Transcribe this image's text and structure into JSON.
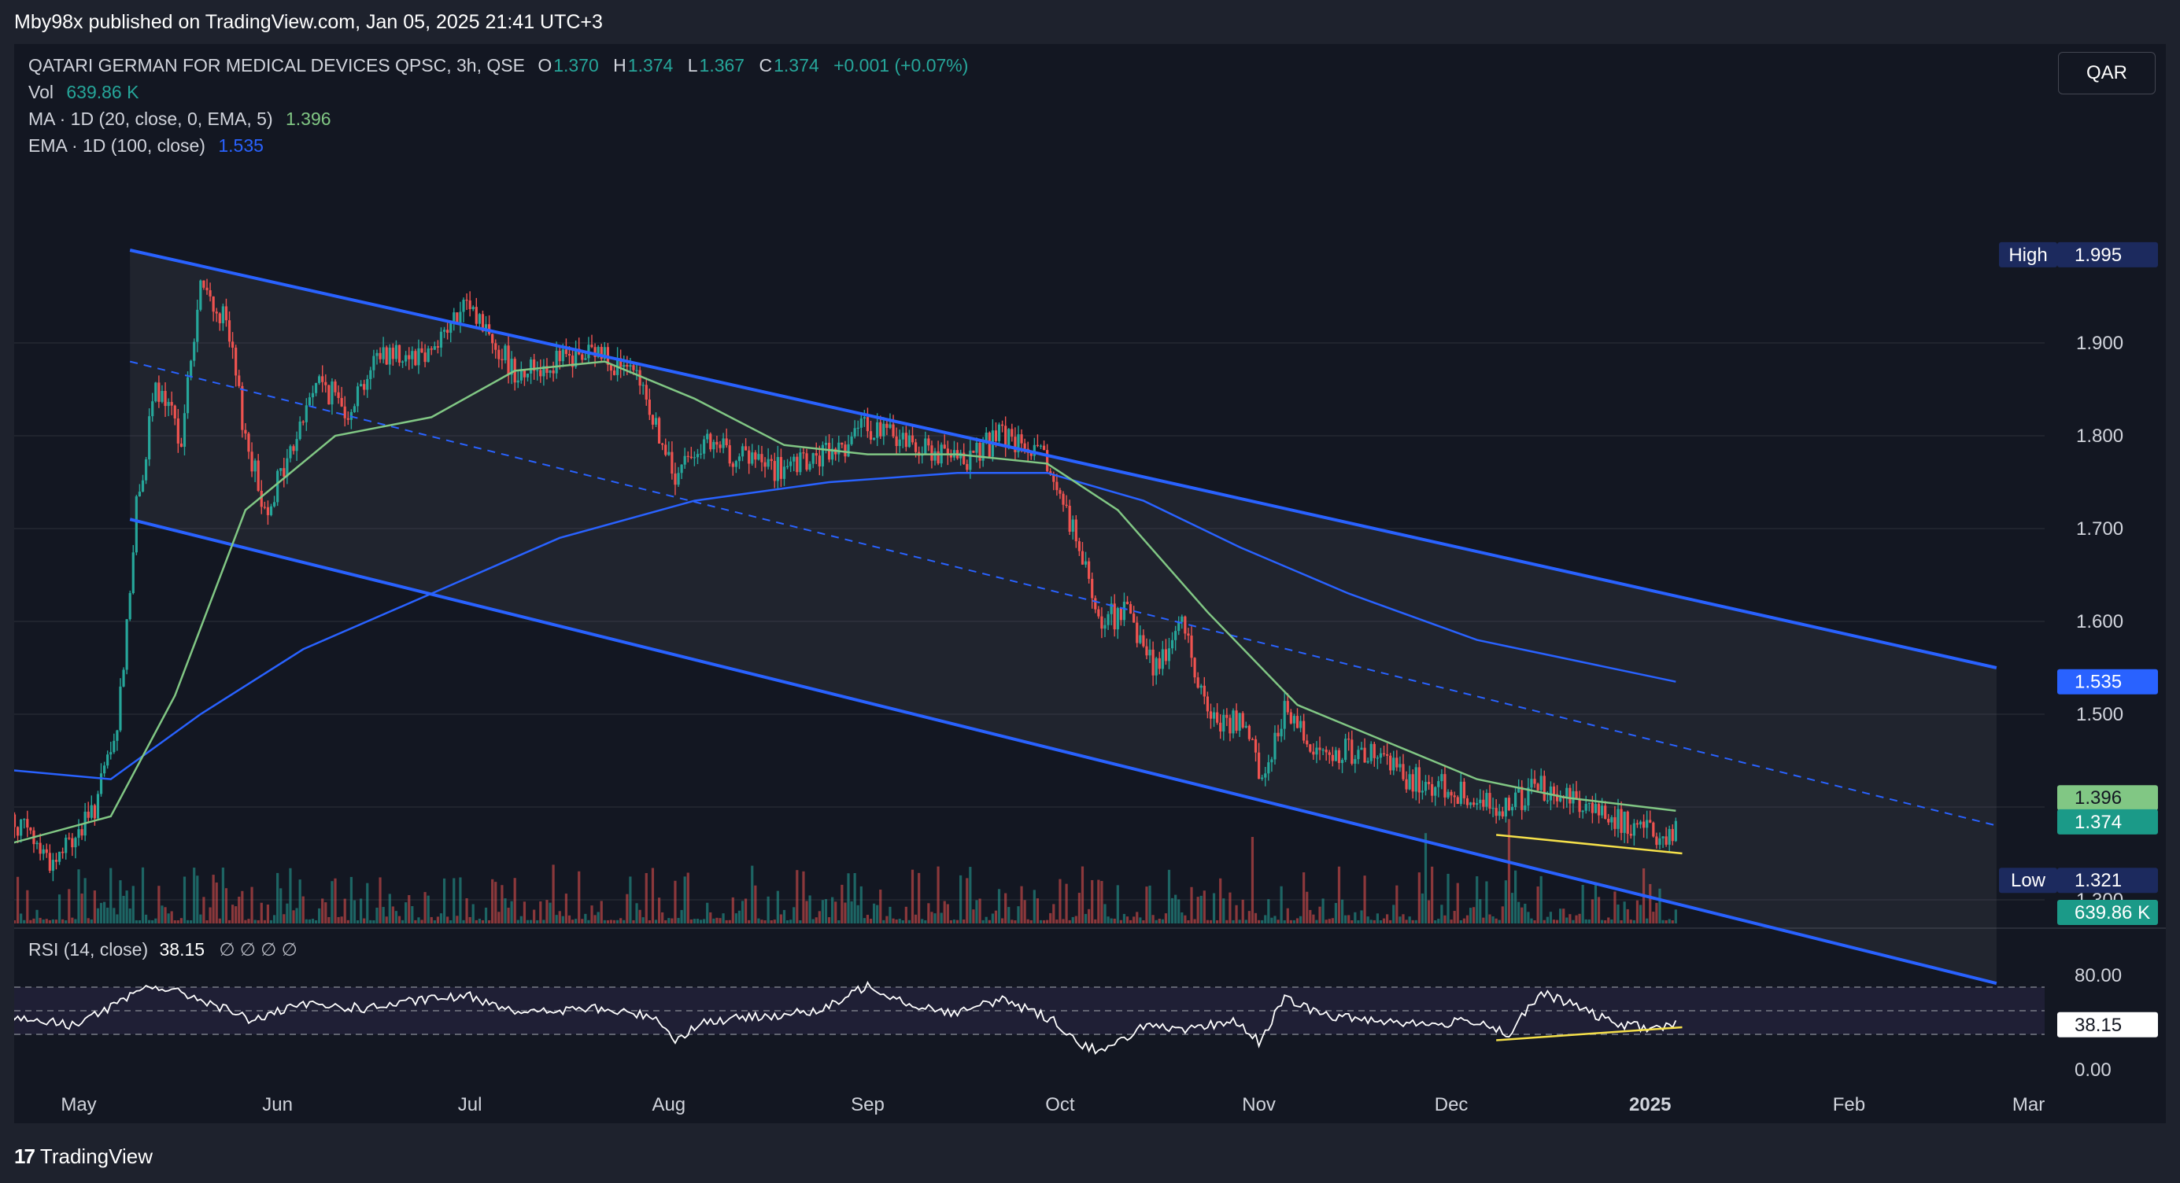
{
  "header": {
    "publisher_line": "Mby98x published on TradingView.com, Jan 05, 2025 21:41 UTC+3"
  },
  "legend": {
    "symbol": "QATARI GERMAN FOR MEDICAL DEVICES QPSC, 3h, QSE",
    "open_label": "O",
    "open": "1.370",
    "high_label": "H",
    "high": "1.374",
    "low_label": "L",
    "low": "1.367",
    "close_label": "C",
    "close": "1.374",
    "change": "+0.001 (+0.07%)",
    "vol_label": "Vol",
    "vol_value": "639.86 K",
    "ma_label": "MA · 1D (20, close, 0, EMA, 5)",
    "ma_value": "1.396",
    "ema_label": "EMA · 1D (100, close)",
    "ema_value": "1.535"
  },
  "currency_button": "QAR",
  "rsi_legend": {
    "label": "RSI (14, close)",
    "value": "38.15",
    "na_marks": "∅ ∅ ∅ ∅"
  },
  "footer": {
    "brand": "TradingView",
    "logo": "17"
  },
  "colors": {
    "background": "#131722",
    "up": "#26a69a",
    "down": "#ef5350",
    "channel": "#2962ff",
    "ma": "#81c784",
    "ema": "#2962ff",
    "trend_yellow": "#f5e04a",
    "rsi": "#ffffff"
  },
  "price_tags": {
    "high": {
      "label": "High",
      "value": "1.995"
    },
    "low": {
      "label": "Low",
      "value": "1.321"
    },
    "ema": "1.535",
    "ma": "1.396",
    "close": "1.374",
    "volume": "639.86 K",
    "rsi": "38.15"
  },
  "chart_data": {
    "type": "candlestick",
    "symbol": "QATARI GERMAN FOR MEDICAL DEVICES QPSC",
    "timeframe": "3h",
    "exchange": "QSE",
    "currency": "QAR",
    "ylim": [
      1.25,
      2.05
    ],
    "y_ticks": [
      "1.900",
      "1.800",
      "1.700",
      "1.600",
      "1.500",
      "1.300"
    ],
    "x_ticks": [
      "May",
      "Jun",
      "Jul",
      "Aug",
      "Sep",
      "Oct",
      "Nov",
      "Dec",
      "2025",
      "Feb",
      "Mar"
    ],
    "price_path": [
      [
        "2024-04-20",
        1.395
      ],
      [
        "2024-04-27",
        1.34
      ],
      [
        "2024-05-03",
        1.39
      ],
      [
        "2024-05-07",
        1.48
      ],
      [
        "2024-05-10",
        1.72
      ],
      [
        "2024-05-13",
        1.85
      ],
      [
        "2024-05-17",
        1.8
      ],
      [
        "2024-05-20",
        1.96
      ],
      [
        "2024-05-24",
        1.92
      ],
      [
        "2024-05-27",
        1.8
      ],
      [
        "2024-05-30",
        1.72
      ],
      [
        "2024-06-03",
        1.78
      ],
      [
        "2024-06-07",
        1.86
      ],
      [
        "2024-06-12",
        1.83
      ],
      [
        "2024-06-17",
        1.89
      ],
      [
        "2024-06-24",
        1.89
      ],
      [
        "2024-07-01",
        1.94
      ],
      [
        "2024-07-08",
        1.87
      ],
      [
        "2024-07-15",
        1.88
      ],
      [
        "2024-07-22",
        1.89
      ],
      [
        "2024-07-28",
        1.85
      ],
      [
        "2024-08-02",
        1.75
      ],
      [
        "2024-08-05",
        1.79
      ],
      [
        "2024-08-12",
        1.78
      ],
      [
        "2024-08-19",
        1.76
      ],
      [
        "2024-08-26",
        1.78
      ],
      [
        "2024-09-01",
        1.81
      ],
      [
        "2024-09-09",
        1.79
      ],
      [
        "2024-09-15",
        1.77
      ],
      [
        "2024-09-22",
        1.8
      ],
      [
        "2024-09-29",
        1.77
      ],
      [
        "2024-10-03",
        1.7
      ],
      [
        "2024-10-07",
        1.6
      ],
      [
        "2024-10-11",
        1.61
      ],
      [
        "2024-10-16",
        1.55
      ],
      [
        "2024-10-20",
        1.6
      ],
      [
        "2024-10-24",
        1.5
      ],
      [
        "2024-10-29",
        1.49
      ],
      [
        "2024-11-02",
        1.43
      ],
      [
        "2024-11-05",
        1.51
      ],
      [
        "2024-11-10",
        1.46
      ],
      [
        "2024-11-17",
        1.46
      ],
      [
        "2024-11-24",
        1.43
      ],
      [
        "2024-12-01",
        1.42
      ],
      [
        "2024-12-08",
        1.4
      ],
      [
        "2024-12-15",
        1.42
      ],
      [
        "2024-12-20",
        1.41
      ],
      [
        "2024-12-26",
        1.39
      ],
      [
        "2025-01-02",
        1.37
      ],
      [
        "2025-01-05",
        1.374
      ]
    ],
    "ma_1d_20_ema": [
      [
        "2024-04-20",
        1.36
      ],
      [
        "2024-05-06",
        1.39
      ],
      [
        "2024-05-16",
        1.52
      ],
      [
        "2024-05-27",
        1.72
      ],
      [
        "2024-06-10",
        1.8
      ],
      [
        "2024-06-25",
        1.82
      ],
      [
        "2024-07-08",
        1.87
      ],
      [
        "2024-07-22",
        1.88
      ],
      [
        "2024-08-05",
        1.84
      ],
      [
        "2024-08-19",
        1.79
      ],
      [
        "2024-09-01",
        1.78
      ],
      [
        "2024-09-15",
        1.78
      ],
      [
        "2024-09-29",
        1.77
      ],
      [
        "2024-10-10",
        1.72
      ],
      [
        "2024-10-24",
        1.61
      ],
      [
        "2024-11-07",
        1.51
      ],
      [
        "2024-11-21",
        1.47
      ],
      [
        "2024-12-05",
        1.43
      ],
      [
        "2024-12-19",
        1.41
      ],
      [
        "2025-01-05",
        1.396
      ]
    ],
    "ema_1d_100": [
      [
        "2024-04-20",
        1.44
      ],
      [
        "2024-05-06",
        1.43
      ],
      [
        "2024-05-20",
        1.5
      ],
      [
        "2024-06-05",
        1.57
      ],
      [
        "2024-06-25",
        1.63
      ],
      [
        "2024-07-15",
        1.69
      ],
      [
        "2024-08-05",
        1.73
      ],
      [
        "2024-08-26",
        1.75
      ],
      [
        "2024-09-15",
        1.76
      ],
      [
        "2024-09-29",
        1.76
      ],
      [
        "2024-10-14",
        1.73
      ],
      [
        "2024-10-29",
        1.68
      ],
      [
        "2024-11-15",
        1.63
      ],
      [
        "2024-12-05",
        1.58
      ],
      [
        "2025-01-05",
        1.535
      ]
    ],
    "channel": {
      "upper": [
        [
          "2024-05-09",
          2.0
        ],
        [
          "2025-02-24",
          1.55
        ]
      ],
      "lower": [
        [
          "2024-05-09",
          1.71
        ],
        [
          "2025-02-24",
          1.21
        ]
      ],
      "mid": [
        [
          "2024-05-09",
          1.88
        ],
        [
          "2025-02-24",
          1.38
        ]
      ]
    },
    "support_trendline": [
      [
        "2024-12-08",
        1.37
      ],
      [
        "2025-01-06",
        1.35
      ]
    ],
    "volume_last": "639.86 K",
    "rsi": {
      "period": 14,
      "last": 38.15,
      "levels": [
        70,
        50,
        30
      ],
      "y_ticks": [
        "80.00",
        "0.00"
      ],
      "path": [
        [
          "2024-04-20",
          45
        ],
        [
          "2024-04-30",
          38
        ],
        [
          "2024-05-08",
          58
        ],
        [
          "2024-05-12",
          72
        ],
        [
          "2024-05-20",
          60
        ],
        [
          "2024-05-28",
          42
        ],
        [
          "2024-06-05",
          55
        ],
        [
          "2024-06-15",
          52
        ],
        [
          "2024-06-25",
          60
        ],
        [
          "2024-07-01",
          62
        ],
        [
          "2024-07-10",
          48
        ],
        [
          "2024-07-20",
          52
        ],
        [
          "2024-07-30",
          45
        ],
        [
          "2024-08-02",
          25
        ],
        [
          "2024-08-06",
          40
        ],
        [
          "2024-08-15",
          45
        ],
        [
          "2024-08-25",
          50
        ],
        [
          "2024-09-01",
          72
        ],
        [
          "2024-09-08",
          55
        ],
        [
          "2024-09-15",
          48
        ],
        [
          "2024-09-22",
          60
        ],
        [
          "2024-09-30",
          42
        ],
        [
          "2024-10-04",
          22
        ],
        [
          "2024-10-08",
          15
        ],
        [
          "2024-10-14",
          38
        ],
        [
          "2024-10-20",
          32
        ],
        [
          "2024-10-28",
          42
        ],
        [
          "2024-11-01",
          24
        ],
        [
          "2024-11-05",
          60
        ],
        [
          "2024-11-12",
          45
        ],
        [
          "2024-11-20",
          42
        ],
        [
          "2024-11-28",
          38
        ],
        [
          "2024-12-05",
          42
        ],
        [
          "2024-12-10",
          30
        ],
        [
          "2024-12-15",
          65
        ],
        [
          "2024-12-20",
          55
        ],
        [
          "2024-12-26",
          40
        ],
        [
          "2025-01-01",
          35
        ],
        [
          "2025-01-05",
          38.15
        ]
      ],
      "trendline": [
        [
          "2024-12-08",
          25
        ],
        [
          "2025-01-06",
          36
        ]
      ]
    }
  }
}
